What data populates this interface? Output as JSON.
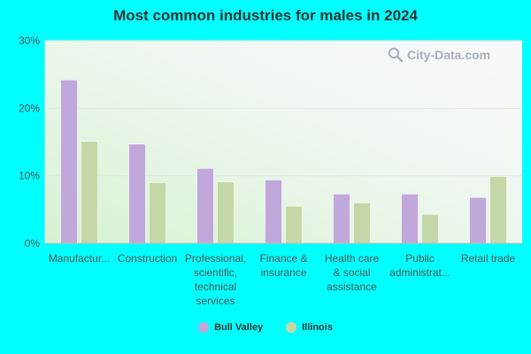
{
  "chart_data": {
    "type": "bar",
    "title": "Most common industries for males in 2024",
    "categories": [
      [
        "Manufactur..."
      ],
      [
        "Construction"
      ],
      [
        "Professional,",
        "scientific,",
        "technical",
        "services"
      ],
      [
        "Finance &",
        "insurance"
      ],
      [
        "Health care",
        "& social",
        "assistance"
      ],
      [
        "Public",
        "administrat..."
      ],
      [
        "Retail trade"
      ]
    ],
    "series": [
      {
        "name": "Bull Valley",
        "color": "#c0a8da",
        "values": [
          24.2,
          14.7,
          11.1,
          9.4,
          7.3,
          7.3,
          6.8
        ]
      },
      {
        "name": "Illinois",
        "color": "#c3d8a6",
        "values": [
          15.1,
          9.0,
          9.1,
          5.5,
          6.0,
          4.3,
          9.9
        ]
      }
    ],
    "y_ticks": [
      "0%",
      "10%",
      "20%",
      "30%"
    ],
    "y_tick_values": [
      0,
      10,
      20,
      30
    ],
    "ylim": [
      0,
      30
    ],
    "grid": true,
    "legend": "bottom-center"
  },
  "watermark": {
    "text": "City-Data.com",
    "icon": "magnifier-icon"
  }
}
